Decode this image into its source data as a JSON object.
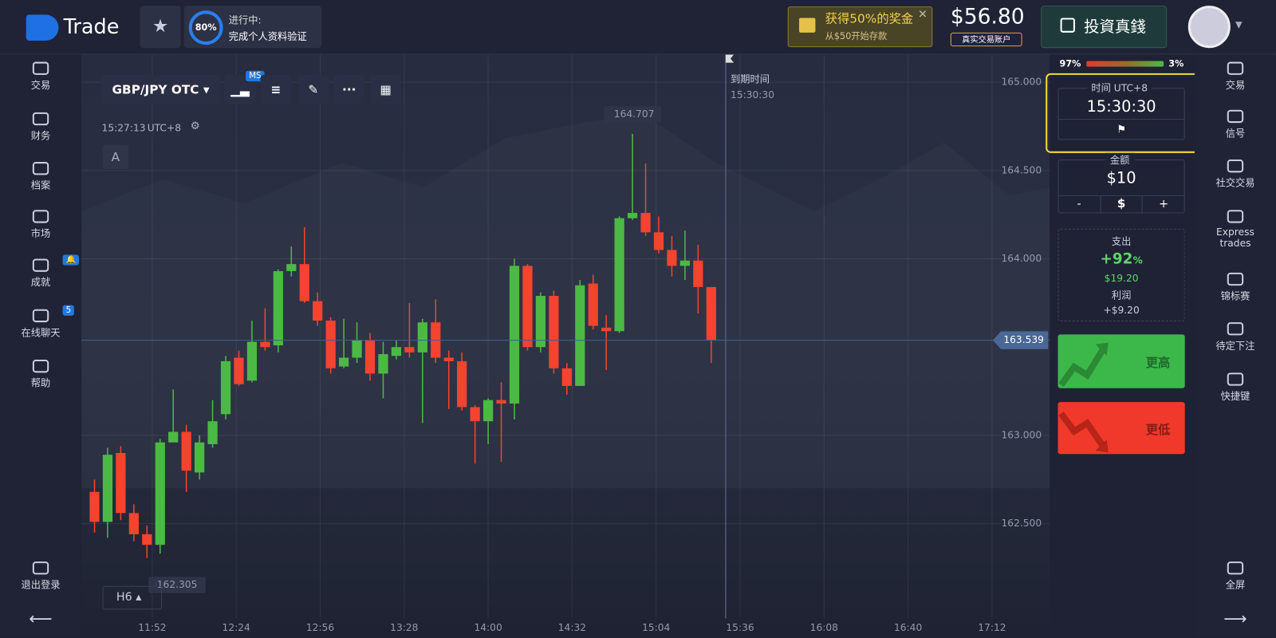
{
  "header": {
    "logo": "Trade",
    "progress": {
      "percent": "80%",
      "status": "进行中:",
      "task": "完成个人资料验证"
    },
    "bonus": {
      "title": "获得50%的奖金",
      "subtitle": "从$50开始存款"
    },
    "balance": {
      "amount": "$56.80",
      "account": "真实交易账户"
    },
    "deposit_button": "投資真錢"
  },
  "left_nav": {
    "items": [
      "交易",
      "财务",
      "档案",
      "市场",
      "成就",
      "在线聊天",
      "帮助"
    ],
    "chat_badge": "5",
    "logout": "退出登录"
  },
  "toolbar": {
    "pair": "GBP/JPY OTC",
    "indicator_badge": "MS",
    "clock": "15:27:13",
    "timezone": "UTC+8",
    "drawing_label": "A",
    "timeframe": "H6"
  },
  "chart_data": {
    "type": "candlestick",
    "x": [
      "11:30",
      "11:35",
      "11:40",
      "11:45",
      "11:50",
      "11:55",
      "12:00",
      "12:05",
      "12:10",
      "12:15",
      "12:20",
      "12:25",
      "12:30",
      "12:35",
      "12:40",
      "12:45",
      "12:50",
      "12:55",
      "13:00",
      "13:05",
      "13:10",
      "13:15",
      "13:20",
      "13:25",
      "13:30",
      "13:35",
      "13:40",
      "13:45",
      "13:50",
      "13:55",
      "14:00",
      "14:05",
      "14:10",
      "14:15",
      "14:20",
      "14:25",
      "14:30",
      "14:35",
      "14:40",
      "14:45",
      "14:50",
      "14:55",
      "15:00",
      "15:05",
      "15:10",
      "15:15",
      "15:20",
      "15:25"
    ],
    "open": [
      162.68,
      162.51,
      162.9,
      162.56,
      162.44,
      162.38,
      162.96,
      163.02,
      162.79,
      162.95,
      163.12,
      163.44,
      163.31,
      163.53,
      163.51,
      163.93,
      163.97,
      163.76,
      163.65,
      163.39,
      163.44,
      163.54,
      163.35,
      163.45,
      163.5,
      163.47,
      163.64,
      163.44,
      163.42,
      163.16,
      163.08,
      163.2,
      163.18,
      163.96,
      163.5,
      163.79,
      163.38,
      163.28,
      163.86,
      163.61,
      163.59,
      164.23,
      164.26,
      164.15,
      164.05,
      163.96,
      163.99,
      163.84
    ],
    "high": [
      162.75,
      162.93,
      162.94,
      162.61,
      162.49,
      162.98,
      163.26,
      163.06,
      163.0,
      163.2,
      163.45,
      163.48,
      163.65,
      163.72,
      163.94,
      164.07,
      164.18,
      163.81,
      163.67,
      163.66,
      163.64,
      163.58,
      163.53,
      163.54,
      163.75,
      163.66,
      163.77,
      163.48,
      163.47,
      163.17,
      163.21,
      163.3,
      164.0,
      163.97,
      163.81,
      163.82,
      163.41,
      163.88,
      163.91,
      163.68,
      164.24,
      164.707,
      164.54,
      164.24,
      164.13,
      164.16,
      164.08,
      163.84
    ],
    "low": [
      162.45,
      162.42,
      162.52,
      162.4,
      162.305,
      162.33,
      162.98,
      162.68,
      162.75,
      162.93,
      163.09,
      163.28,
      163.3,
      163.48,
      163.47,
      163.9,
      163.75,
      163.62,
      163.35,
      163.38,
      163.41,
      163.31,
      163.21,
      163.43,
      163.44,
      163.07,
      163.41,
      163.15,
      163.14,
      162.84,
      162.95,
      162.85,
      163.09,
      163.48,
      163.47,
      163.35,
      163.23,
      163.28,
      163.6,
      163.37,
      163.58,
      164.22,
      164.13,
      164.03,
      163.9,
      163.88,
      163.69,
      163.41
    ],
    "close": [
      162.51,
      162.89,
      162.56,
      162.44,
      162.38,
      162.96,
      163.02,
      162.8,
      162.96,
      163.08,
      163.42,
      163.29,
      163.53,
      163.5,
      163.93,
      163.97,
      163.76,
      163.65,
      163.38,
      163.44,
      163.54,
      163.35,
      163.46,
      163.5,
      163.47,
      163.64,
      163.44,
      163.42,
      163.16,
      163.08,
      163.2,
      163.18,
      163.96,
      163.5,
      163.79,
      163.38,
      163.28,
      163.85,
      163.62,
      163.59,
      164.23,
      164.26,
      164.15,
      164.05,
      163.96,
      163.99,
      163.84,
      163.539
    ],
    "up_color": "#4cb944",
    "down_color": "#f4432e",
    "xlim": [
      "11:25",
      "17:34"
    ],
    "xticks": [
      "11:52",
      "12:24",
      "12:56",
      "13:28",
      "14:00",
      "14:32",
      "15:04",
      "15:36",
      "16:08",
      "16:40",
      "17:12"
    ],
    "ylim": [
      161.963,
      165.157
    ],
    "yticks": [
      {
        "value": 162.5,
        "label": "162.500"
      },
      {
        "value": 163,
        "label": "163.000"
      },
      {
        "value": 164,
        "label": "164.000"
      },
      {
        "value": 164.5,
        "label": "164.500"
      },
      {
        "value": 165,
        "label": "165.000"
      }
    ],
    "grid": true,
    "expiry_label": "到期时间",
    "expiry_time": "15:30:30"
  },
  "trade_panel": {
    "sentiment": {
      "down": "97%",
      "up": "3%"
    },
    "time": {
      "label": "时间 UTC+8",
      "value": "15:30:30"
    },
    "amount": {
      "label": "金额",
      "value": "$10",
      "minus": "-",
      "currency": "$",
      "plus": "+"
    },
    "payout": {
      "label": "支出",
      "percent": "+92",
      "percent_unit": "%",
      "amount": "$19.20",
      "profit_label": "利润",
      "profit": "+$9.20"
    },
    "higher": "更高",
    "lower": "更低"
  },
  "right_nav": {
    "items": [
      "交易",
      "信号",
      "社交交易",
      "Express trades",
      "锦标赛",
      "待定下注",
      "快捷键"
    ],
    "fullscreen": "全屏"
  }
}
